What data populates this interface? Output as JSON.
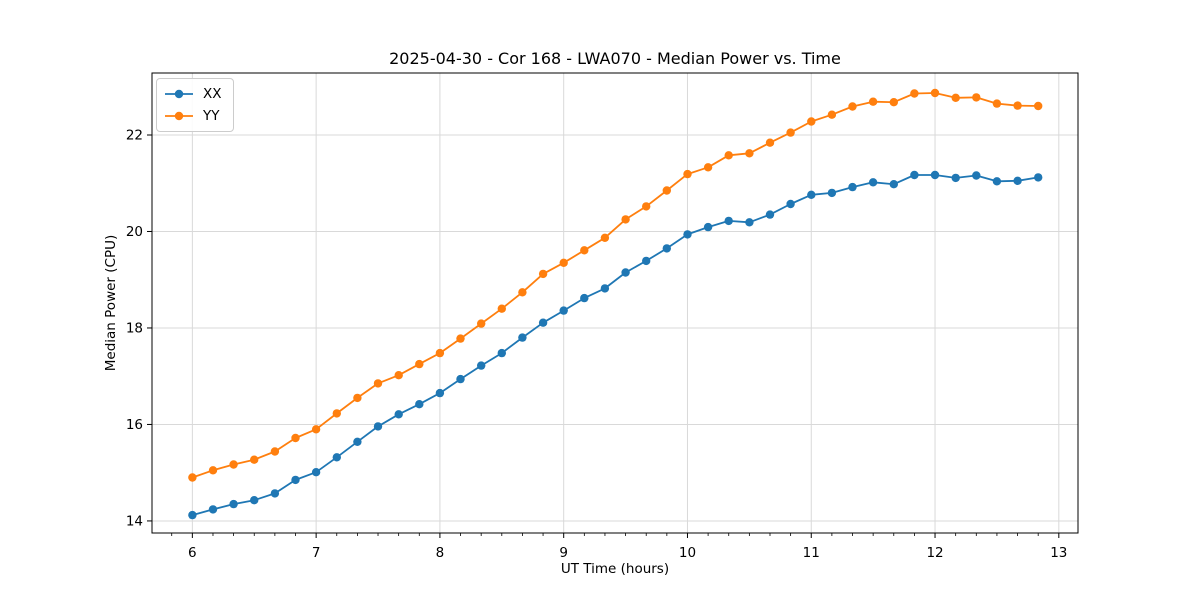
{
  "chart_data": {
    "type": "line",
    "title": "2025-04-30 - Cor 168 - LWA070 - Median Power vs. Time",
    "xlabel": "UT Time (hours)",
    "ylabel": "Median Power (CPU)",
    "x": [
      6.0,
      6.1667,
      6.3333,
      6.5,
      6.6667,
      6.8333,
      7.0,
      7.1667,
      7.3333,
      7.5,
      7.6667,
      7.8333,
      8.0,
      8.1667,
      8.3333,
      8.5,
      8.6667,
      8.8333,
      9.0,
      9.1667,
      9.3333,
      9.5,
      9.6667,
      9.8333,
      10.0,
      10.1667,
      10.3333,
      10.5,
      10.6667,
      10.8333,
      11.0,
      11.1667,
      11.3333,
      11.5,
      11.6667,
      11.8333,
      12.0,
      12.1667,
      12.3333,
      12.5,
      12.6667,
      12.8333
    ],
    "series": [
      {
        "name": "XX",
        "color": "#1f77b4",
        "marker": "circle",
        "values": [
          14.12,
          14.24,
          14.35,
          14.43,
          14.57,
          14.85,
          15.01,
          15.32,
          15.64,
          15.96,
          16.21,
          16.42,
          16.65,
          16.94,
          17.22,
          17.48,
          17.8,
          18.11,
          18.36,
          18.62,
          18.82,
          19.15,
          19.39,
          19.65,
          19.94,
          20.09,
          20.22,
          20.19,
          20.35,
          20.57,
          20.76,
          20.8,
          20.92,
          21.02,
          20.98,
          21.17,
          21.17,
          21.11,
          21.16,
          21.04,
          21.05,
          21.12
        ]
      },
      {
        "name": "YY",
        "color": "#ff7f0e",
        "marker": "circle",
        "values": [
          14.9,
          15.05,
          15.17,
          15.27,
          15.44,
          15.72,
          15.9,
          16.23,
          16.55,
          16.85,
          17.02,
          17.25,
          17.48,
          17.78,
          18.09,
          18.4,
          18.74,
          19.12,
          19.35,
          19.61,
          19.87,
          20.25,
          20.52,
          20.85,
          21.19,
          21.33,
          21.58,
          21.62,
          21.84,
          22.05,
          22.28,
          22.42,
          22.59,
          22.69,
          22.68,
          22.86,
          22.87,
          22.77,
          22.78,
          22.65,
          22.61,
          22.6
        ]
      }
    ],
    "xlim": [
      5.674,
      13.155
    ],
    "ylim": [
      13.75,
      23.285
    ],
    "x_ticks": [
      6,
      7,
      8,
      9,
      10,
      11,
      12,
      13
    ],
    "y_ticks": [
      14,
      16,
      18,
      20,
      22
    ],
    "x_minor_tick_step": 0.1667,
    "grid": true,
    "grid_color": "#d9d9d9",
    "axis_color": "#000000",
    "legend": {
      "position": "upper-left",
      "entries": [
        "XX",
        "YY"
      ]
    }
  }
}
